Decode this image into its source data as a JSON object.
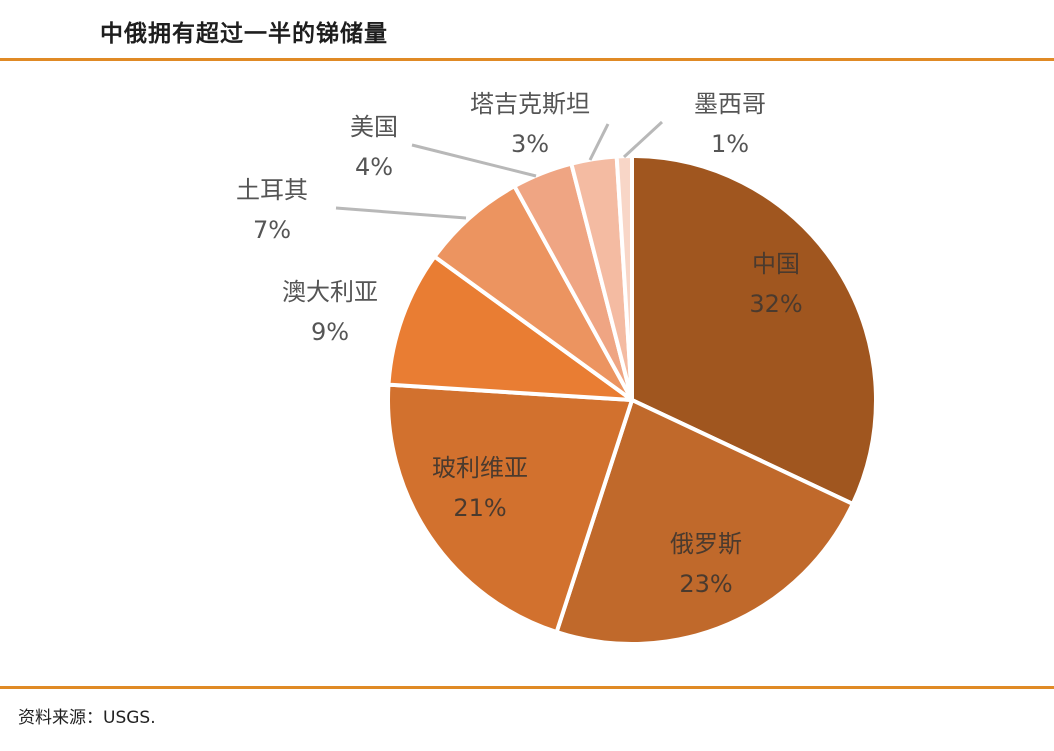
{
  "header": {
    "title": "中俄拥有超过一半的锑储量"
  },
  "footer": {
    "source": "资料来源：USGS."
  },
  "chart_data": {
    "type": "pie",
    "title": "中俄拥有超过一半的锑储量",
    "slices": [
      {
        "name": "中国",
        "label": "32%",
        "value": 32,
        "color": "#a0561f",
        "placement": "inside"
      },
      {
        "name": "俄罗斯",
        "label": "23%",
        "value": 23,
        "color": "#c0692b",
        "placement": "inside"
      },
      {
        "name": "玻利维亚",
        "label": "21%",
        "value": 21,
        "color": "#d2712e",
        "placement": "inside"
      },
      {
        "name": "澳大利亚",
        "label": "9%",
        "value": 9,
        "color": "#e97d33",
        "placement": "outside"
      },
      {
        "name": "土耳其",
        "label": "7%",
        "value": 7,
        "color": "#ec9460",
        "placement": "outside"
      },
      {
        "name": "美国",
        "label": "4%",
        "value": 4,
        "color": "#efa583",
        "placement": "outside"
      },
      {
        "name": "塔吉克斯坦",
        "label": "3%",
        "value": 3,
        "color": "#f4bba2",
        "placement": "outside"
      },
      {
        "name": "墨西哥",
        "label": "1%",
        "value": 1,
        "color": "#f8d6c7",
        "placement": "outside"
      }
    ]
  }
}
